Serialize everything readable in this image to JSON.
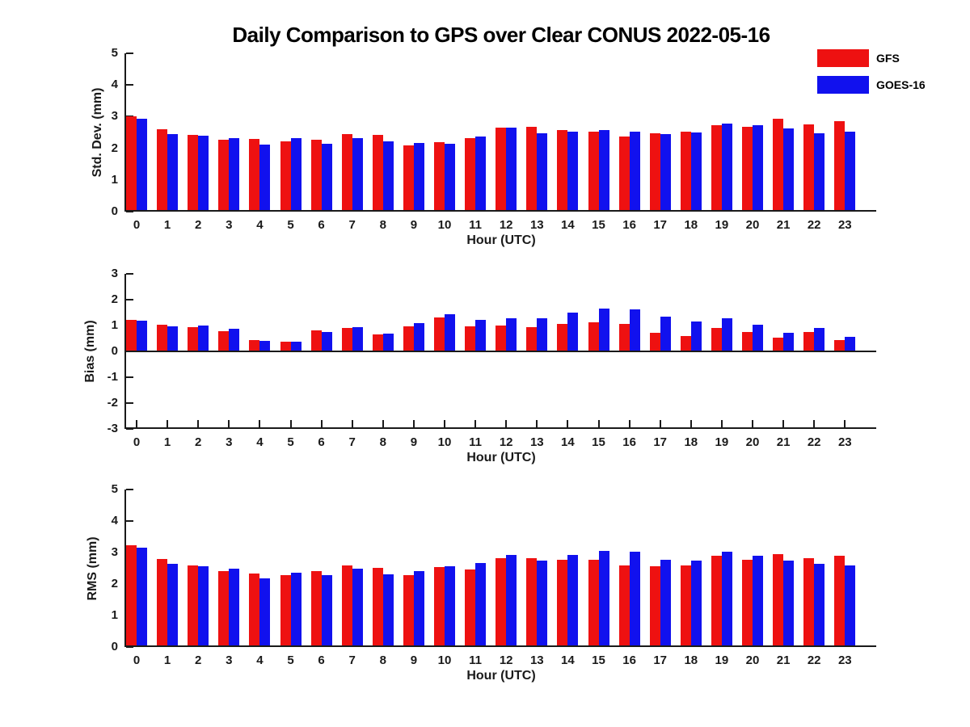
{
  "title": "Daily Comparison to GPS over Clear CONUS 2022-05-16",
  "legend": {
    "position": "top-right",
    "items": [
      {
        "label": "GFS",
        "color": "#ee1111"
      },
      {
        "label": "GOES-16",
        "color": "#1111ee"
      }
    ]
  },
  "axis_color": "#1a1a1a",
  "chart_data": [
    {
      "type": "bar",
      "panel": "std_dev",
      "ylabel": "Std. Dev. (mm)",
      "xlabel": "Hour (UTC)",
      "ylim": [
        0,
        5
      ],
      "yticks": [
        0,
        1,
        2,
        3,
        4,
        5
      ],
      "grid": false,
      "categories": [
        "0",
        "1",
        "2",
        "3",
        "4",
        "5",
        "6",
        "7",
        "8",
        "9",
        "10",
        "11",
        "12",
        "13",
        "14",
        "15",
        "16",
        "17",
        "18",
        "19",
        "20",
        "21",
        "22",
        "23"
      ],
      "series": [
        {
          "name": "GFS",
          "color": "#ee1111",
          "values": [
            2.97,
            2.55,
            2.37,
            2.22,
            2.24,
            2.18,
            2.23,
            2.4,
            2.36,
            2.05,
            2.14,
            2.26,
            2.61,
            2.64,
            2.53,
            2.48,
            2.32,
            2.42,
            2.47,
            2.69,
            2.64,
            2.89,
            2.7,
            2.81
          ]
        },
        {
          "name": "GOES-16",
          "color": "#1111ee",
          "values": [
            2.88,
            2.4,
            2.35,
            2.28,
            2.07,
            2.28,
            2.08,
            2.26,
            2.18,
            2.11,
            2.08,
            2.32,
            2.59,
            2.43,
            2.47,
            2.53,
            2.47,
            2.39,
            2.45,
            2.72,
            2.67,
            2.57,
            2.42,
            2.47
          ]
        }
      ]
    },
    {
      "type": "bar",
      "panel": "bias",
      "ylabel": "Bias (mm)",
      "xlabel": "Hour (UTC)",
      "ylim": [
        -3,
        3
      ],
      "yticks": [
        -3,
        -2,
        -1,
        0,
        1,
        2,
        3
      ],
      "grid": false,
      "categories": [
        "0",
        "1",
        "2",
        "3",
        "4",
        "5",
        "6",
        "7",
        "8",
        "9",
        "10",
        "11",
        "12",
        "13",
        "14",
        "15",
        "16",
        "17",
        "18",
        "19",
        "20",
        "21",
        "22",
        "23"
      ],
      "series": [
        {
          "name": "GFS",
          "color": "#ee1111",
          "values": [
            1.18,
            1.0,
            0.92,
            0.76,
            0.41,
            0.33,
            0.77,
            0.87,
            0.61,
            0.93,
            1.27,
            0.94,
            0.97,
            0.92,
            1.02,
            1.09,
            1.04,
            0.7,
            0.56,
            0.86,
            0.73,
            0.5,
            0.71,
            0.42
          ]
        },
        {
          "name": "GOES-16",
          "color": "#1111ee",
          "values": [
            1.15,
            0.93,
            0.96,
            0.84,
            0.37,
            0.33,
            0.72,
            0.92,
            0.65,
            1.05,
            1.42,
            1.18,
            1.25,
            1.25,
            1.47,
            1.62,
            1.6,
            1.31,
            1.14,
            1.26,
            1.01,
            0.68,
            0.87,
            0.52
          ]
        }
      ]
    },
    {
      "type": "bar",
      "panel": "rms",
      "ylabel": "RMS (mm)",
      "xlabel": "Hour (UTC)",
      "ylim": [
        0,
        5
      ],
      "yticks": [
        0,
        1,
        2,
        3,
        4,
        5
      ],
      "grid": false,
      "categories": [
        "0",
        "1",
        "2",
        "3",
        "4",
        "5",
        "6",
        "7",
        "8",
        "9",
        "10",
        "11",
        "12",
        "13",
        "14",
        "15",
        "16",
        "17",
        "18",
        "19",
        "20",
        "21",
        "22",
        "23"
      ],
      "series": [
        {
          "name": "GFS",
          "color": "#ee1111",
          "values": [
            3.17,
            2.75,
            2.55,
            2.36,
            2.29,
            2.22,
            2.35,
            2.55,
            2.46,
            2.24,
            2.48,
            2.42,
            2.77,
            2.77,
            2.71,
            2.72,
            2.55,
            2.52,
            2.54,
            2.84,
            2.73,
            2.9,
            2.78,
            2.84
          ]
        },
        {
          "name": "GOES-16",
          "color": "#1111ee",
          "values": [
            3.11,
            2.58,
            2.52,
            2.44,
            2.13,
            2.32,
            2.22,
            2.43,
            2.26,
            2.35,
            2.51,
            2.61,
            2.86,
            2.69,
            2.87,
            3.01,
            2.97,
            2.73,
            2.7,
            2.98,
            2.84,
            2.68,
            2.58,
            2.54
          ]
        }
      ]
    }
  ]
}
